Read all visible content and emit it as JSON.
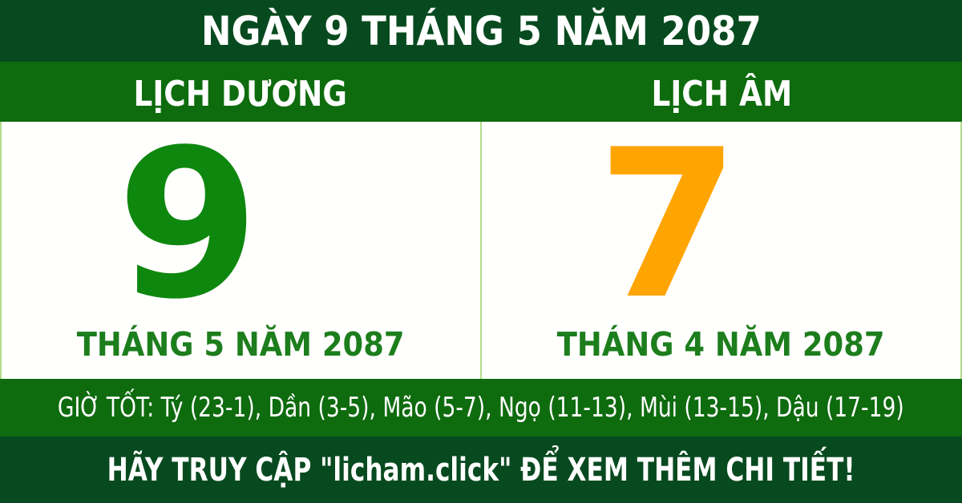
{
  "header": {
    "title": "NGÀY 9 THÁNG 5 NĂM 2087"
  },
  "calendar": {
    "solar": {
      "label": "LỊCH DƯƠNG",
      "day": "9",
      "month_year": "THÁNG 5 NĂM 2087"
    },
    "lunar": {
      "label": "LỊCH ÂM",
      "day": "7",
      "month_year": "THÁNG 4 NĂM 2087"
    }
  },
  "good_hours": {
    "text": "GIỜ TỐT: Tý (23-1), Dần (3-5), Mão (5-7), Ngọ (11-13), Mùi (13-15), Dậu (17-19)"
  },
  "footer": {
    "text": "HÃY TRUY CẬP \"licham.click\" ĐỂ XEM THÊM CHI TIẾT!"
  },
  "colors": {
    "dark_green": "#084a1f",
    "medium_green": "#0e6b0e",
    "solar_green": "#0e870e",
    "label_green": "#1c7e1c",
    "lunar_orange": "#ffa502",
    "divider_light_green": "#b2dc8a",
    "text_white": "#ffffff",
    "panel_white": "#fffffe"
  }
}
